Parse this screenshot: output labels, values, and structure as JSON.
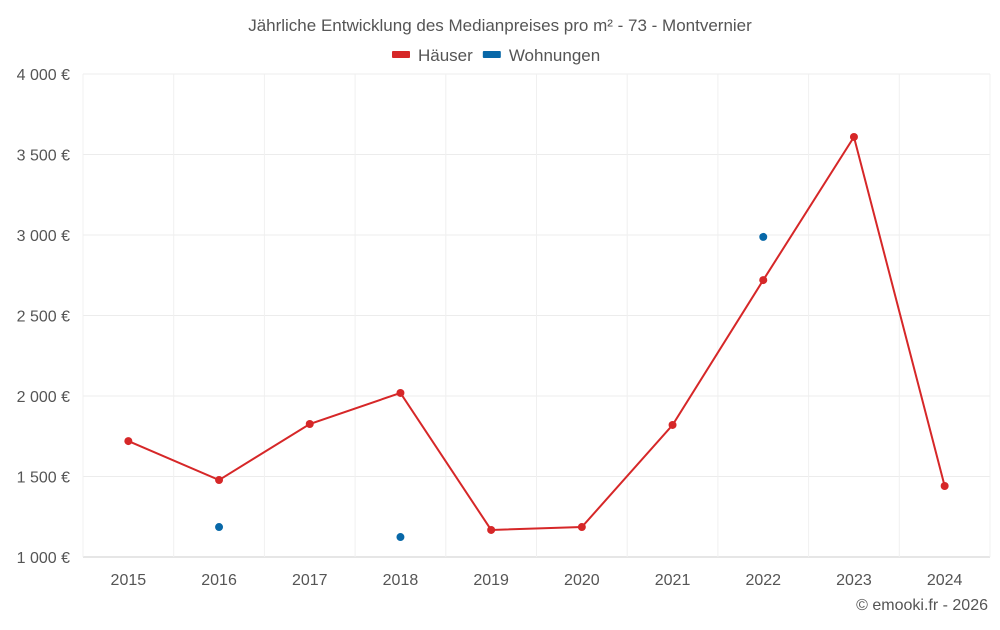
{
  "chart_data": {
    "type": "line",
    "title": "Jährliche Entwicklung des Medianpreises pro m² - 73 - Montvernier",
    "categories": [
      "2015",
      "2016",
      "2017",
      "2018",
      "2019",
      "2020",
      "2021",
      "2022",
      "2023",
      "2024"
    ],
    "ylim": [
      1000,
      4000
    ],
    "yticks": [
      1000,
      1500,
      2000,
      2500,
      3000,
      3500,
      4000
    ],
    "ytick_labels": [
      "1 000 €",
      "1 500 €",
      "2 000 €",
      "2 500 €",
      "3 000 €",
      "3 500 €",
      "4 000 €"
    ],
    "grid": true,
    "legend_position": "top-center",
    "series": [
      {
        "name": "Häuser",
        "color": "#d62728",
        "values": [
          1720,
          1478,
          1826,
          2019,
          1168,
          1186,
          1820,
          2720,
          3609,
          1441
        ],
        "line": true
      },
      {
        "name": "Wohnungen",
        "color": "#0868a8",
        "values": [
          null,
          1186,
          null,
          1124,
          null,
          null,
          null,
          2988,
          null,
          null
        ],
        "line": false
      }
    ],
    "credit": "© emooki.fr - 2026"
  }
}
